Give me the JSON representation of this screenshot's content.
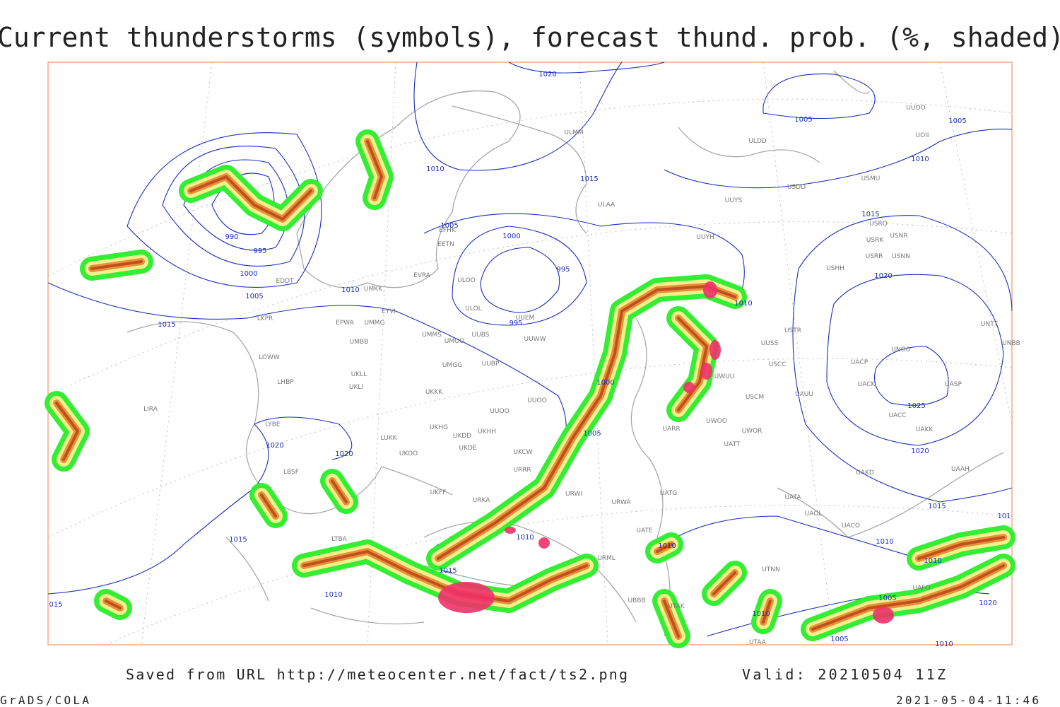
{
  "title": "Current thunderstorms (symbols), forecast thund. prob. (%, shaded)",
  "footer": {
    "source": "Saved from URL http://meteocenter.net/fact/ts2.png",
    "valid": "Valid: 20210504 11Z",
    "software": "GrADS/COLA",
    "timestamp": "2021-05-04-11:46"
  },
  "isobar_labels": [
    "1020",
    "1005",
    "1005",
    "1010",
    "1010",
    "1015",
    "990",
    "995",
    "1000",
    "1005",
    "1005",
    "1000",
    "995",
    "1010",
    "995",
    "1015",
    "1010",
    "1015",
    "1020",
    "1025",
    "1020",
    "1015",
    "1000",
    "1005",
    "1020",
    "1020",
    "1015",
    "1010",
    "1015",
    "1010",
    "015",
    "1010",
    "1010",
    "1010",
    "1005",
    "1020",
    "1010",
    "1005",
    "1010",
    "101"
  ],
  "stations": [
    "ULMM",
    "ULDD",
    "UUOO",
    "UOII",
    "USMU",
    "USDD",
    "UUYS",
    "ULAA",
    "UUYH",
    "USRO",
    "USRK",
    "USNR",
    "USRR",
    "USNN",
    "USHH",
    "EFHK",
    "EETN",
    "EVRA",
    "ULOO",
    "ULOL",
    "UMKK",
    "EYVI",
    "UMMG",
    "EPWA",
    "UMMS",
    "UMOO",
    "UUBS",
    "UUEM",
    "UUWW",
    "UMBB",
    "UUSS",
    "USTR",
    "UNBB",
    "UNOO",
    "LKPR",
    "LOWW",
    "LHBP",
    "UKLL",
    "UKLI",
    "UMGG",
    "UUBP",
    "UKKK",
    "UUOO",
    "UUOO",
    "UACP",
    "UACK",
    "UASP",
    "USCC",
    "USCM",
    "UAUU",
    "UACC",
    "UAKK",
    "LIRA",
    "LYBE",
    "LUKK",
    "UKHG",
    "UKDD",
    "UKHH",
    "UKOO",
    "UKDE",
    "UKCW",
    "URRR",
    "UKFF",
    "URKA",
    "URWI",
    "URWA",
    "UATG",
    "UATT",
    "UWOO",
    "UWOR",
    "UARR",
    "UAKD",
    "UAAH",
    "UATA",
    "UAOL",
    "UACO",
    "LBSF",
    "LTBA",
    "URML",
    "UATE",
    "UTNN",
    "UBBB",
    "UTAK",
    "UTAA",
    "UAFO",
    "EDDT",
    "UWUU",
    "UNTT"
  ]
}
